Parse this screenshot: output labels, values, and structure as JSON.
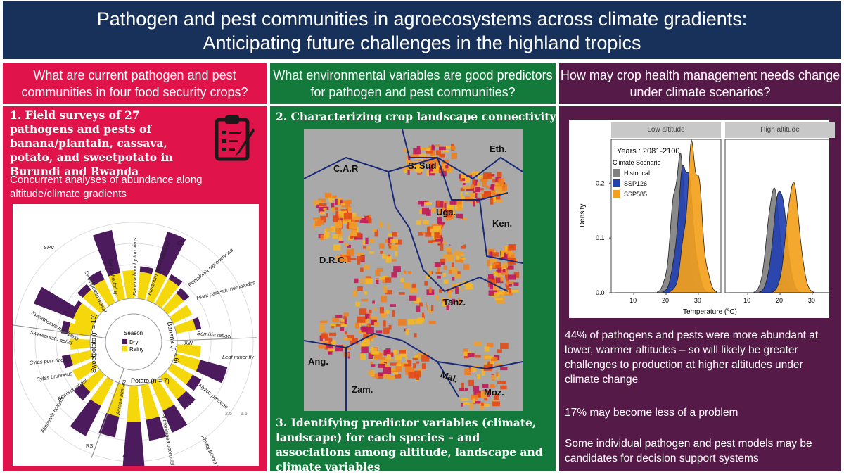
{
  "header": {
    "title_line1": "Pathogen and pest communities in agroecosystems across climate gradients:",
    "title_line2": "Anticipating future challenges in the highland tropics"
  },
  "colors": {
    "title_bg": "#17315a",
    "col1_bg": "#e0134a",
    "col2_bg": "#147a3b",
    "col3_bg": "#561a48",
    "rose_dry": "#4b1b5e",
    "rose_rainy": "#f5d80b",
    "hist": "#808080",
    "ssp126": "#2340b0",
    "ssp585": "#f3a11c"
  },
  "col1": {
    "question": "What are current pathogen and pest communities in four food security crops?",
    "heading": "1.  Field surveys of 27 pathogens and pests of banana/plantain, cassava, potato, and sweetpotato in Burundi and Rwanda",
    "sub": "Concurrent analyses of abundance along altitude/climate gradients",
    "icon": "clipboard-pencil-icon",
    "rose": {
      "legend_title": "Season",
      "legend_dry": "Dry",
      "legend_rainy": "Rainy",
      "crop_banana": "Banana (n = 6)",
      "crop_potato": "Potato (n = 7)",
      "crop_sweetpotato": "Sweetpotato (n = 10)",
      "tick_a": "1.5",
      "tick_b": "2.5",
      "labels": {
        "bunchy": "Banana bunchy top virus",
        "fusarium": "Fusarium wilt of banana",
        "pentalonia": "Pentalonia nigronervosa",
        "nematodes": "Plant parasitic nematodes",
        "bemisia1": "Bemisia tabaci",
        "leafminer": "Leaf miner fly",
        "myzus": "Myzus persicae",
        "phytophthora": "Phytophthora infestans",
        "phthorimaea": "Phthorimaea operculella",
        "acraea": "Acraea acerata",
        "alternaria": "Alternaria botrytis",
        "bemisia2": "Bemisia tabaci",
        "cylas_b": "Cylas brunneus",
        "cylas_p": "Cylas puncticollis",
        "aphid": "Sweetpotato aphid",
        "mealybug": "Sweetpotato mealybug",
        "weevil": "Sweetpotato weevil",
        "synanthedon": "Synanthedon sp.",
        "spv": "SPV",
        "cs": "CS",
        "xw": "XW",
        "rs": "RS",
        "a": "A"
      }
    }
  },
  "col2": {
    "question": "What environmental variables are good predictors for pathogen and pest communities?",
    "heading2": "2. Characterizing crop landscape connectivity",
    "heading3": "3. Identifying predictor variables (climate, landscape) for each species – and associations among altitude, landscape and climate variables",
    "map": {
      "car": "C.A.R",
      "ssud": "S. Sud",
      "eth": "Eth.",
      "uga": "Uga.",
      "ken": "Ken.",
      "drc": "D.R.C.",
      "tanz": "Tanz.",
      "ang": "Ang.",
      "zam": "Zam.",
      "mal": "Mal.",
      "moz": "Moz."
    }
  },
  "col3": {
    "question": "How may crop health management needs change under climate scenarios?",
    "para1": "44% of pathogens and pests were more abundant at lower, warmer altitudes – so will likely be greater challenges to production at higher altitudes under climate change",
    "para2": "17% may become less of a problem",
    "para3": "Some individual pathogen and pest models may be candidates for decision support systems",
    "plot": {
      "facet_low": "Low altitude",
      "facet_high": "High altitude",
      "years": "Years : 2081-2100",
      "legend_title": "Climate Scenario",
      "legend": [
        "Historical",
        "SSP126",
        "SSP585"
      ],
      "ylabel": "Density",
      "xlabel": "Temperature (°C)",
      "yticks": [
        "0.0",
        "0.1",
        "0.2"
      ],
      "xticks": [
        "10",
        "20",
        "30"
      ]
    }
  }
}
